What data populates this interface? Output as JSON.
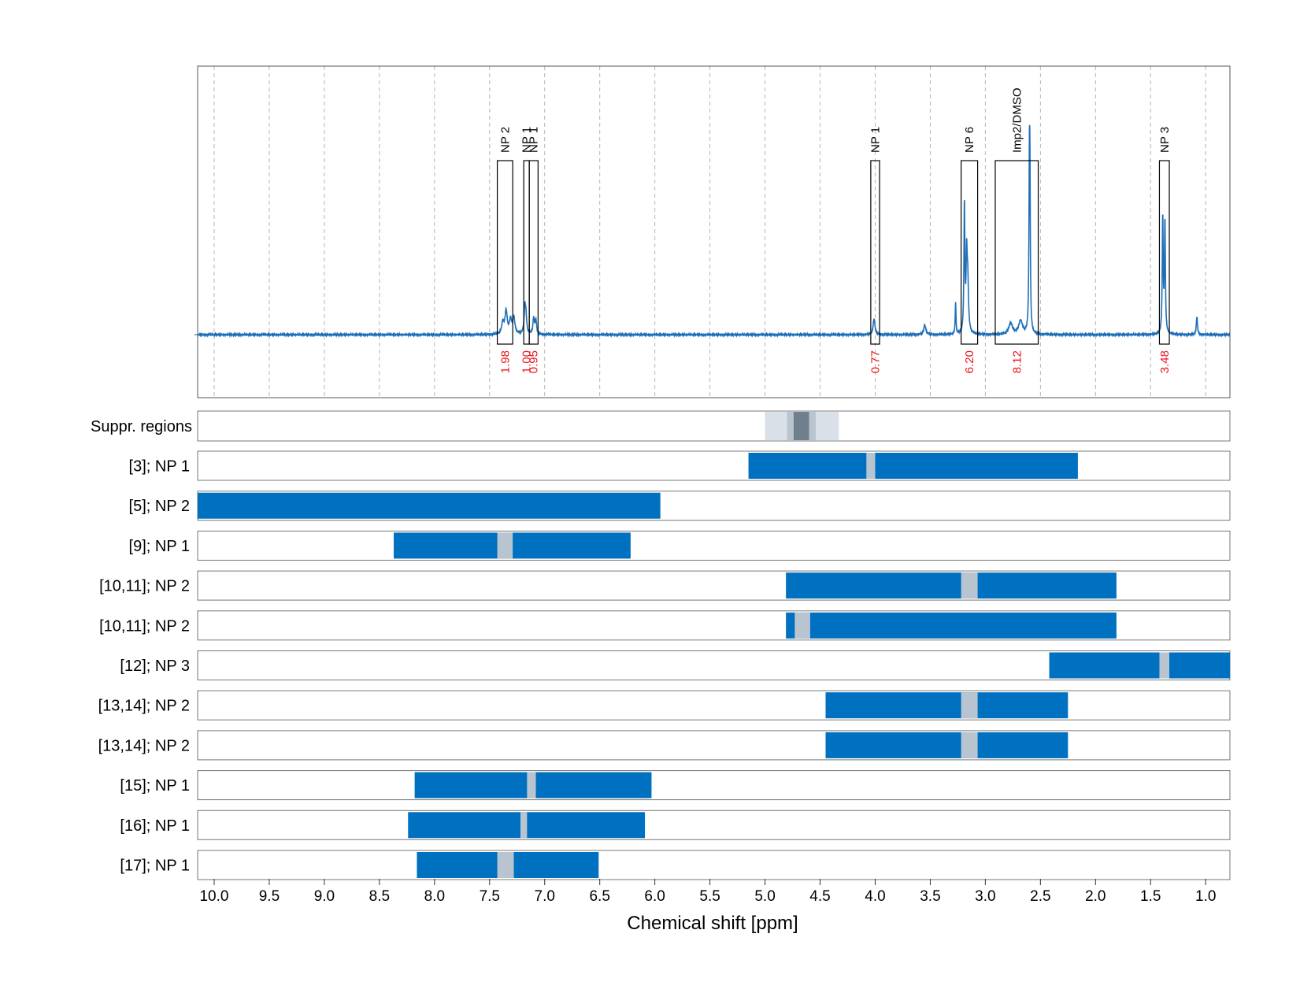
{
  "chart_data": {
    "type": "line",
    "xlabel": "Chemical shift [ppm]",
    "xlim": [
      10.15,
      0.78
    ],
    "x_ticks": [
      "10.0",
      "9.5",
      "9.0",
      "8.5",
      "8.0",
      "7.5",
      "7.0",
      "6.5",
      "6.0",
      "5.5",
      "5.0",
      "4.5",
      "4.0",
      "3.5",
      "3.0",
      "2.5",
      "2.0",
      "1.5",
      "1.0"
    ],
    "x_tick_values": [
      10.0,
      9.5,
      9.0,
      8.5,
      8.0,
      7.5,
      7.0,
      6.5,
      6.0,
      5.5,
      5.0,
      4.5,
      4.0,
      3.5,
      3.0,
      2.5,
      2.0,
      1.5,
      1.0
    ],
    "grid": "vertical dashed",
    "colors": {
      "spectrum": "#1f6fb8",
      "bar": "#0070c0",
      "gap": "#b8c5d0",
      "integral_text": "#e8141b",
      "suppr_light": "#d9e0e7",
      "suppr_mid": "#b9c4ce",
      "suppr_dark": "#707f8c"
    },
    "spectrum": {
      "baseline": 0,
      "peaks": [
        {
          "x": 7.35,
          "h": 0.1,
          "w": 0.012
        },
        {
          "x": 7.31,
          "h": 0.06,
          "w": 0.012
        },
        {
          "x": 7.28,
          "h": 0.07,
          "w": 0.012
        },
        {
          "x": 7.38,
          "h": 0.05,
          "w": 0.012
        },
        {
          "x": 7.18,
          "h": 0.11,
          "w": 0.008
        },
        {
          "x": 7.17,
          "h": 0.07,
          "w": 0.008
        },
        {
          "x": 7.1,
          "h": 0.07,
          "w": 0.008
        },
        {
          "x": 7.08,
          "h": 0.06,
          "w": 0.008
        },
        {
          "x": 4.01,
          "h": 0.07,
          "w": 0.01
        },
        {
          "x": 3.55,
          "h": 0.04,
          "w": 0.012
        },
        {
          "x": 3.27,
          "h": 0.14,
          "w": 0.004
        },
        {
          "x": 3.19,
          "h": 0.56,
          "w": 0.005
        },
        {
          "x": 3.17,
          "h": 0.3,
          "w": 0.006
        },
        {
          "x": 3.16,
          "h": 0.22,
          "w": 0.008
        },
        {
          "x": 2.77,
          "h": 0.05,
          "w": 0.02
        },
        {
          "x": 2.68,
          "h": 0.06,
          "w": 0.02
        },
        {
          "x": 2.6,
          "h": 0.7,
          "w": 0.005
        },
        {
          "x": 2.595,
          "h": 0.48,
          "w": 0.004
        },
        {
          "x": 1.39,
          "h": 0.51,
          "w": 0.005
        },
        {
          "x": 1.37,
          "h": 0.49,
          "w": 0.005
        },
        {
          "x": 1.08,
          "h": 0.08,
          "w": 0.006
        }
      ]
    },
    "annotations": [
      {
        "label": "NP 2",
        "x0": 7.43,
        "x1": 7.29,
        "integral": "1.98"
      },
      {
        "label": "NP 1",
        "x0": 7.19,
        "x1": 7.14,
        "integral": "1.00"
      },
      {
        "label": "NP 1",
        "x0": 7.14,
        "x1": 7.06,
        "integral": "0.95"
      },
      {
        "label": "NP 1",
        "x0": 4.04,
        "x1": 3.96,
        "integral": "0.77"
      },
      {
        "label": "NP 6",
        "x0": 3.22,
        "x1": 3.07,
        "integral": "6.20"
      },
      {
        "label": "Imp2/DMSO",
        "x0": 2.91,
        "x1": 2.52,
        "integral": "8.12"
      },
      {
        "label": "NP 3",
        "x0": 1.42,
        "x1": 1.33,
        "integral": "3.48"
      }
    ],
    "suppr_regions": {
      "label": "Suppr. regions",
      "bands": [
        {
          "x0": 5.0,
          "x1": 4.33,
          "level": "light"
        },
        {
          "x0": 4.8,
          "x1": 4.54,
          "level": "mid"
        },
        {
          "x0": 4.74,
          "x1": 4.6,
          "level": "dark"
        }
      ]
    },
    "rows": [
      {
        "label": "[3]; NP 1",
        "x0": 5.15,
        "x1": 2.16,
        "gap": [
          4.08,
          4.0
        ]
      },
      {
        "label": "[5]; NP 2",
        "x0": 10.15,
        "x1": 5.95,
        "gap": null
      },
      {
        "label": "[9]; NP 1",
        "x0": 8.37,
        "x1": 6.22,
        "gap": [
          7.43,
          7.29
        ]
      },
      {
        "label": "[10,11]; NP 2",
        "x0": 4.81,
        "x1": 1.81,
        "gap": [
          3.22,
          3.07
        ]
      },
      {
        "label": "[10,11]; NP 2",
        "x0": 4.81,
        "x1": 1.81,
        "gap": [
          4.73,
          4.59
        ]
      },
      {
        "label": "[12]; NP 3",
        "x0": 2.42,
        "x1": 0.78,
        "gap": [
          1.42,
          1.33
        ]
      },
      {
        "label": "[13,14]; NP 2",
        "x0": 4.45,
        "x1": 2.25,
        "gap": [
          3.22,
          3.07
        ]
      },
      {
        "label": "[13,14]; NP 2",
        "x0": 4.45,
        "x1": 2.25,
        "gap": [
          3.22,
          3.07
        ]
      },
      {
        "label": "[15]; NP 1",
        "x0": 8.18,
        "x1": 6.03,
        "gap": [
          7.16,
          7.08
        ]
      },
      {
        "label": "[16]; NP 1",
        "x0": 8.24,
        "x1": 6.09,
        "gap": [
          7.22,
          7.16
        ]
      },
      {
        "label": "[17]; NP 1",
        "x0": 8.16,
        "x1": 6.51,
        "gap": [
          7.43,
          7.28
        ]
      }
    ]
  }
}
